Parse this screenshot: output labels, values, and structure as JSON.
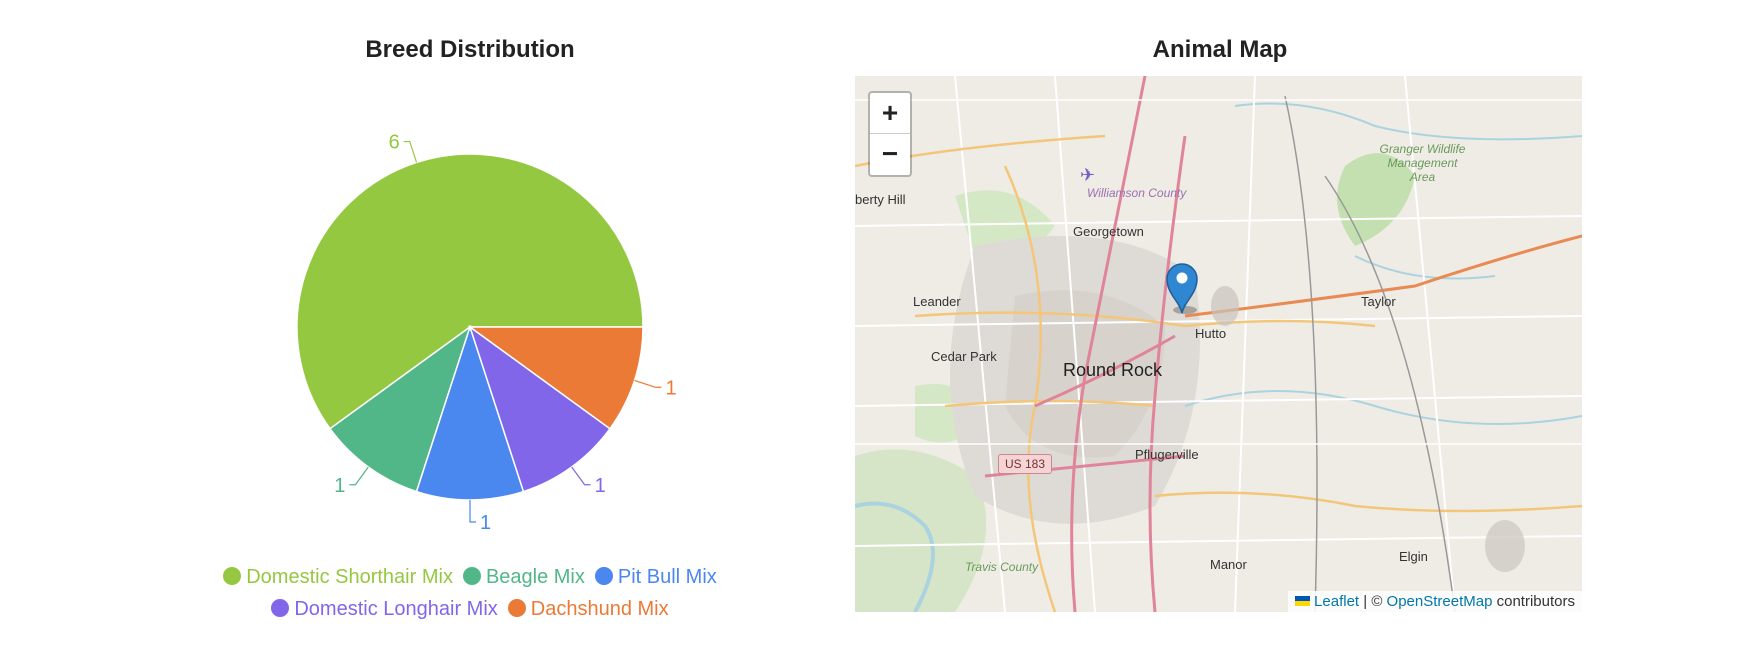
{
  "breed_chart": {
    "title": "Breed Distribution"
  },
  "map_section": {
    "title": "Animal Map",
    "zoom_in_label": "+",
    "zoom_out_label": "−",
    "attribution": {
      "leaflet": "Leaflet",
      "separator": " | © ",
      "osm": "OpenStreetMap",
      "suffix": " contributors"
    },
    "labels": {
      "liberty_hill": "berty Hill",
      "georgetown": "Georgetown",
      "williamson_county": "Williamson County",
      "leander": "Leander",
      "cedar_park": "Cedar Park",
      "round_rock": "Round Rock",
      "hutto": "Hutto",
      "taylor": "Taylor",
      "pflugerville": "Pflugerville",
      "us183": "US 183",
      "travis_county": "Travis County",
      "manor": "Manor",
      "elgin": "Elgin",
      "granger": "Granger Wildlife Management Area"
    }
  },
  "chart_data": {
    "type": "pie",
    "title": "Breed Distribution",
    "categories": [
      "Domestic Shorthair Mix",
      "Beagle Mix",
      "Pit Bull Mix",
      "Domestic Longhair Mix",
      "Dachshund Mix"
    ],
    "values": [
      6,
      1,
      1,
      1,
      1
    ],
    "colors": [
      "#95c841",
      "#52b788",
      "#4a87ef",
      "#8266ea",
      "#ea7a35"
    ],
    "legend_position": "bottom"
  }
}
